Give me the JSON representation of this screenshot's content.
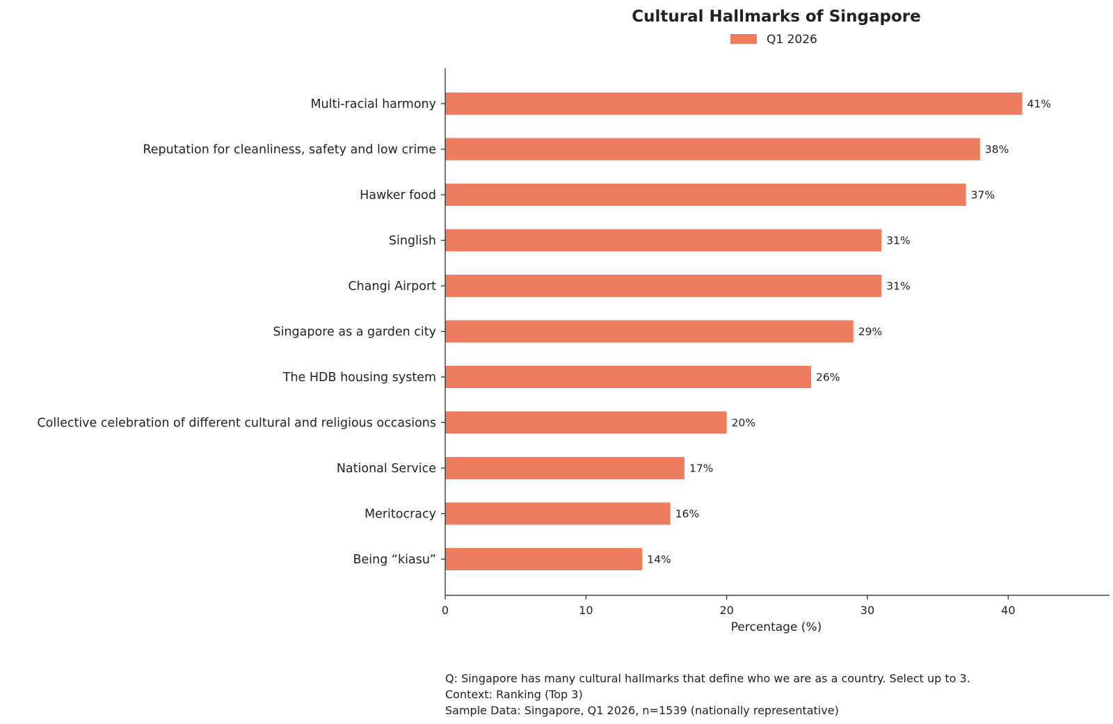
{
  "chart_data": {
    "type": "bar",
    "orientation": "horizontal",
    "title": "Cultural Hallmarks of Singapore",
    "xlabel": "Percentage (%)",
    "ylabel": "",
    "xlim": [
      0,
      47.2
    ],
    "xticks": [
      0,
      10,
      20,
      30,
      40
    ],
    "grid": false,
    "legend_position": "top-center",
    "categories": [
      "Multi-racial harmony",
      "Reputation for cleanliness, safety and low crime",
      "Hawker food",
      "Singlish",
      "Changi Airport",
      "Singapore as a garden city",
      "The HDB housing system",
      "Collective celebration of different cultural and religious occasions",
      "National Service",
      "Meritocracy",
      "Being “kiasu”"
    ],
    "series": [
      {
        "name": "Q1 2026",
        "color": "#ee7d5f",
        "values": [
          41,
          38,
          37,
          31,
          31,
          29,
          26,
          20,
          17,
          16,
          14
        ],
        "labels": [
          "41%",
          "38%",
          "37%",
          "31%",
          "31%",
          "29%",
          "26%",
          "20%",
          "17%",
          "16%",
          "14%"
        ]
      }
    ]
  },
  "notes": [
    "Q: Singapore has many cultural hallmarks that define who we are as a country. Select up to 3.",
    "Context: Ranking (Top 3)",
    "Sample Data: Singapore, Q1 2026, n=1539 (nationally representative)"
  ]
}
